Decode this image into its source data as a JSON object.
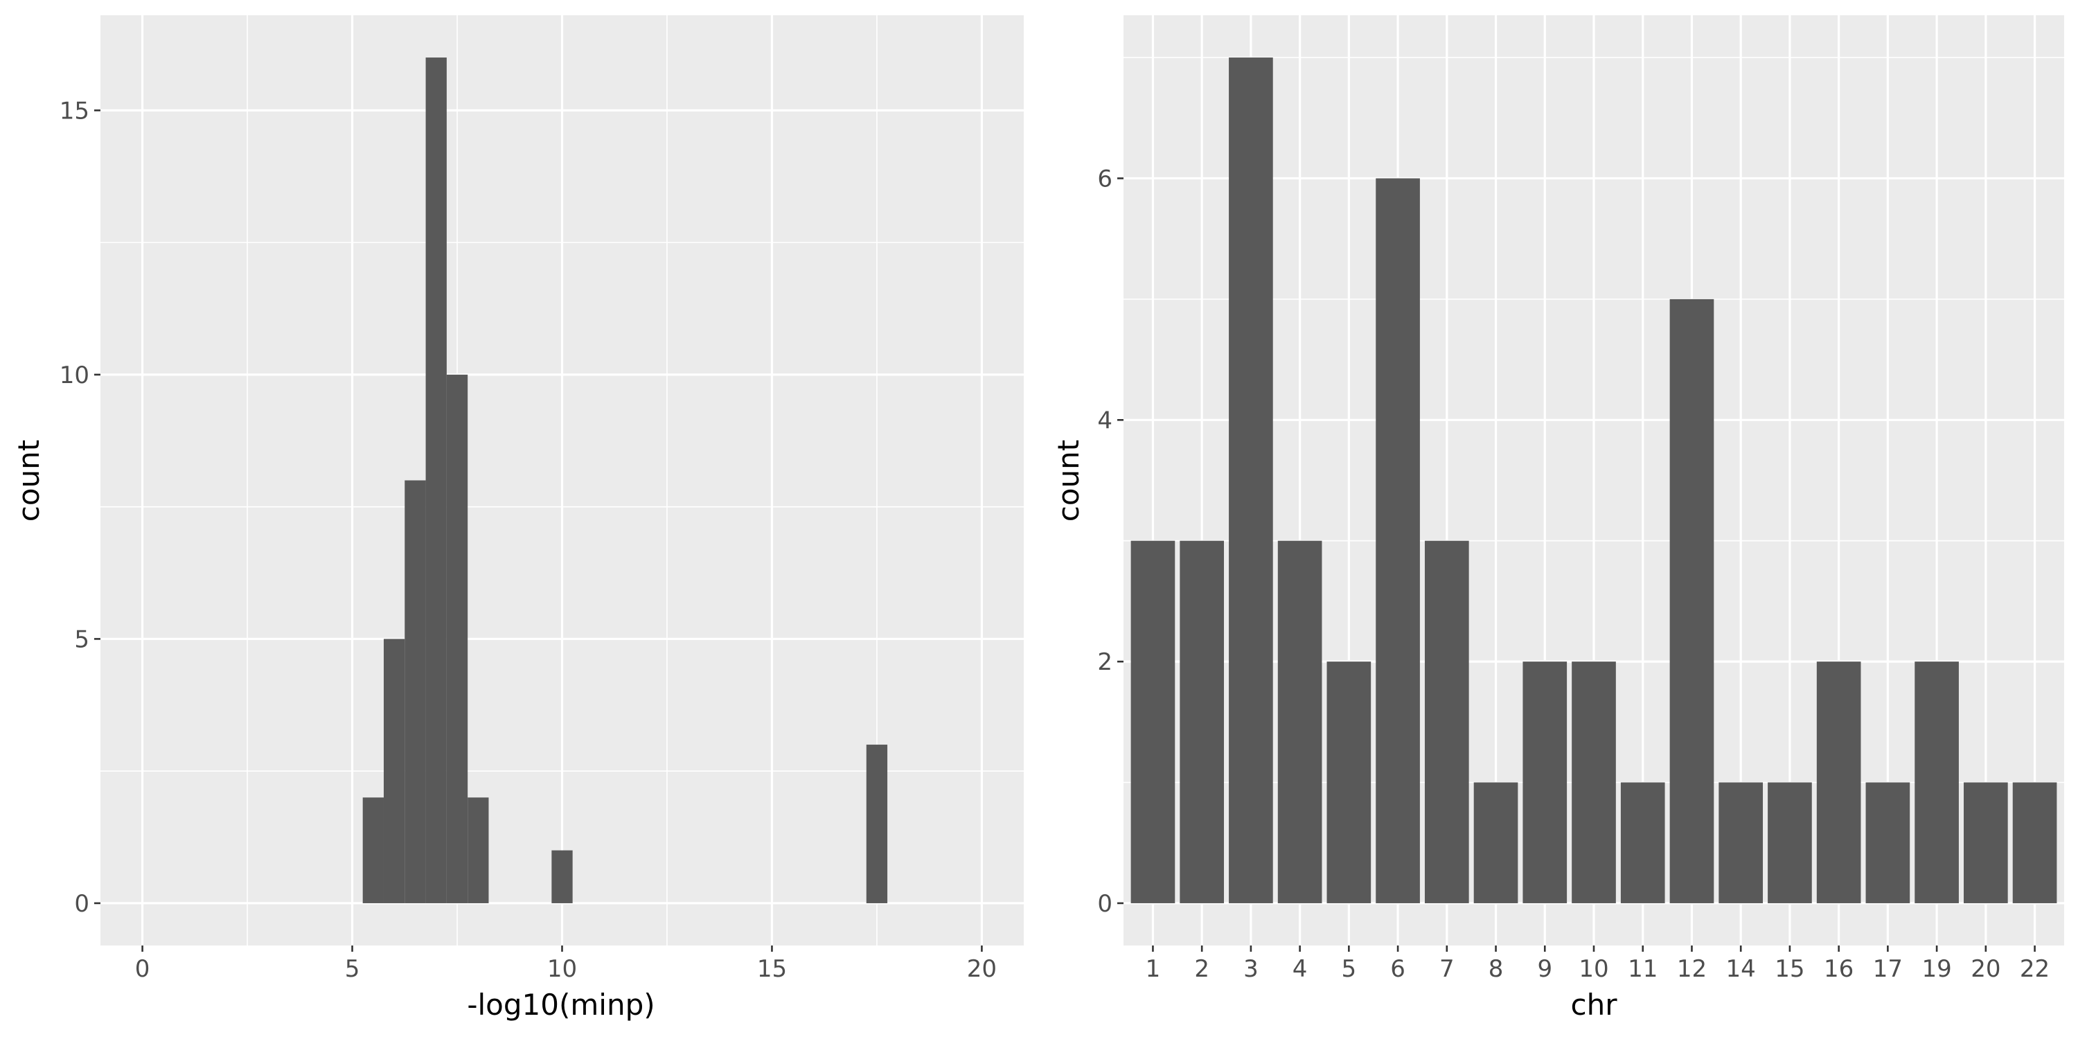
{
  "chart_data": [
    {
      "type": "bar",
      "subtype": "histogram",
      "xlabel": "-log10(minp)",
      "ylabel": "count",
      "xlim": [
        -1,
        21
      ],
      "ylim": [
        -0.8,
        16.8
      ],
      "x_ticks": [
        "0",
        "5",
        "10",
        "15",
        "20"
      ],
      "y_ticks": [
        "0",
        "5",
        "10",
        "15"
      ],
      "bin_width": 0.5,
      "bins": [
        {
          "start": 5.25,
          "end": 5.75,
          "count": 2
        },
        {
          "start": 5.75,
          "end": 6.25,
          "count": 5
        },
        {
          "start": 6.25,
          "end": 6.75,
          "count": 8
        },
        {
          "start": 6.75,
          "end": 7.25,
          "count": 16
        },
        {
          "start": 7.25,
          "end": 7.75,
          "count": 10
        },
        {
          "start": 7.75,
          "end": 8.25,
          "count": 2
        },
        {
          "start": 9.75,
          "end": 10.25,
          "count": 1
        },
        {
          "start": 17.25,
          "end": 17.75,
          "count": 3
        }
      ],
      "grid": true
    },
    {
      "type": "bar",
      "xlabel": "chr",
      "ylabel": "count",
      "ylim": [
        -0.35,
        7.35
      ],
      "y_ticks": [
        "0",
        "2",
        "4",
        "6"
      ],
      "categories": [
        "1",
        "2",
        "3",
        "4",
        "5",
        "6",
        "7",
        "8",
        "9",
        "10",
        "11",
        "12",
        "14",
        "15",
        "16",
        "17",
        "19",
        "20",
        "22"
      ],
      "values": [
        3,
        3,
        7,
        3,
        2,
        6,
        3,
        1,
        2,
        2,
        1,
        5,
        1,
        1,
        2,
        1,
        2,
        1,
        1
      ],
      "grid": true
    }
  ]
}
